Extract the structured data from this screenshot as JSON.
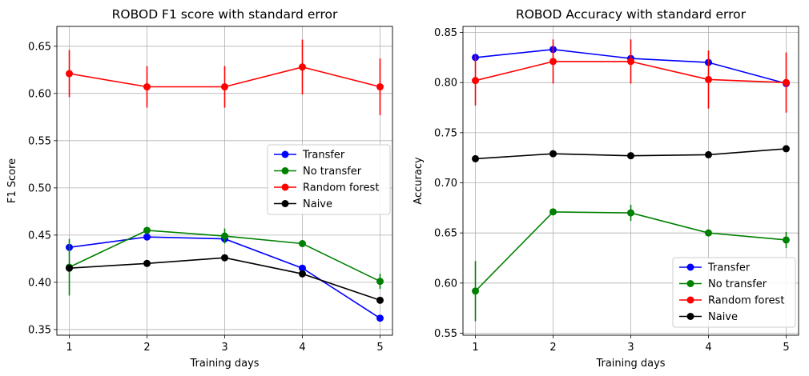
{
  "colors": {
    "Transfer": "#0000ff",
    "No transfer": "#008000",
    "Random forest": "#ff0000",
    "Naive": "#000000",
    "grid": "#b0b0b0",
    "axis": "#000000"
  },
  "chart_data": [
    {
      "type": "line",
      "title": "ROBOD F1 score with standard error",
      "xlabel": "Training days",
      "ylabel": "F1 Score",
      "x": [
        1,
        2,
        3,
        4,
        5
      ],
      "xlim": [
        0.84,
        5.16
      ],
      "ylim": [
        0.344,
        0.671
      ],
      "xticks": [
        1,
        2,
        3,
        4,
        5
      ],
      "yticks": [
        0.35,
        0.4,
        0.45,
        0.5,
        0.55,
        0.6,
        0.65
      ],
      "ytick_labels": [
        "0.35",
        "0.40",
        "0.45",
        "0.50",
        "0.55",
        "0.60",
        "0.65"
      ],
      "grid": true,
      "legend_position": "center-right",
      "series": [
        {
          "name": "Transfer",
          "values": [
            0.437,
            0.448,
            0.446,
            0.415,
            0.362
          ],
          "errors": [
            0.0,
            0.0,
            0.0,
            0.0,
            0.0
          ]
        },
        {
          "name": "No transfer",
          "values": [
            0.416,
            0.455,
            0.449,
            0.441,
            0.401
          ],
          "errors": [
            0.03,
            0.0,
            0.008,
            0.0,
            0.008
          ]
        },
        {
          "name": "Random forest",
          "values": [
            0.621,
            0.607,
            0.607,
            0.628,
            0.607
          ],
          "errors": [
            0.025,
            0.022,
            0.022,
            0.029,
            0.03
          ]
        },
        {
          "name": "Naive",
          "values": [
            0.415,
            0.42,
            0.426,
            0.409,
            0.381
          ],
          "errors": [
            0.0,
            0.0,
            0.0,
            0.0,
            0.0
          ]
        }
      ]
    },
    {
      "type": "line",
      "title": "ROBOD Accuracy with standard error",
      "xlabel": "Training days",
      "ylabel": "Accuracy",
      "x": [
        1,
        2,
        3,
        4,
        5
      ],
      "xlim": [
        0.84,
        5.16
      ],
      "ylim": [
        0.548,
        0.856
      ],
      "xticks": [
        1,
        2,
        3,
        4,
        5
      ],
      "yticks": [
        0.55,
        0.6,
        0.65,
        0.7,
        0.75,
        0.8,
        0.85
      ],
      "ytick_labels": [
        "0.55",
        "0.60",
        "0.65",
        "0.70",
        "0.75",
        "0.80",
        "0.85"
      ],
      "grid": true,
      "legend_position": "lower-right",
      "series": [
        {
          "name": "Transfer",
          "values": [
            0.825,
            0.833,
            0.824,
            0.82,
            0.799
          ],
          "errors": [
            0.0,
            0.0,
            0.0,
            0.0,
            0.0
          ]
        },
        {
          "name": "No transfer",
          "values": [
            0.592,
            0.671,
            0.67,
            0.65,
            0.643
          ],
          "errors": [
            0.03,
            0.0,
            0.008,
            0.0,
            0.008
          ]
        },
        {
          "name": "Random forest",
          "values": [
            0.802,
            0.821,
            0.821,
            0.803,
            0.8
          ],
          "errors": [
            0.025,
            0.022,
            0.022,
            0.029,
            0.03
          ]
        },
        {
          "name": "Naive",
          "values": [
            0.724,
            0.729,
            0.727,
            0.728,
            0.734
          ],
          "errors": [
            0.0,
            0.0,
            0.0,
            0.0,
            0.0
          ]
        }
      ]
    }
  ]
}
